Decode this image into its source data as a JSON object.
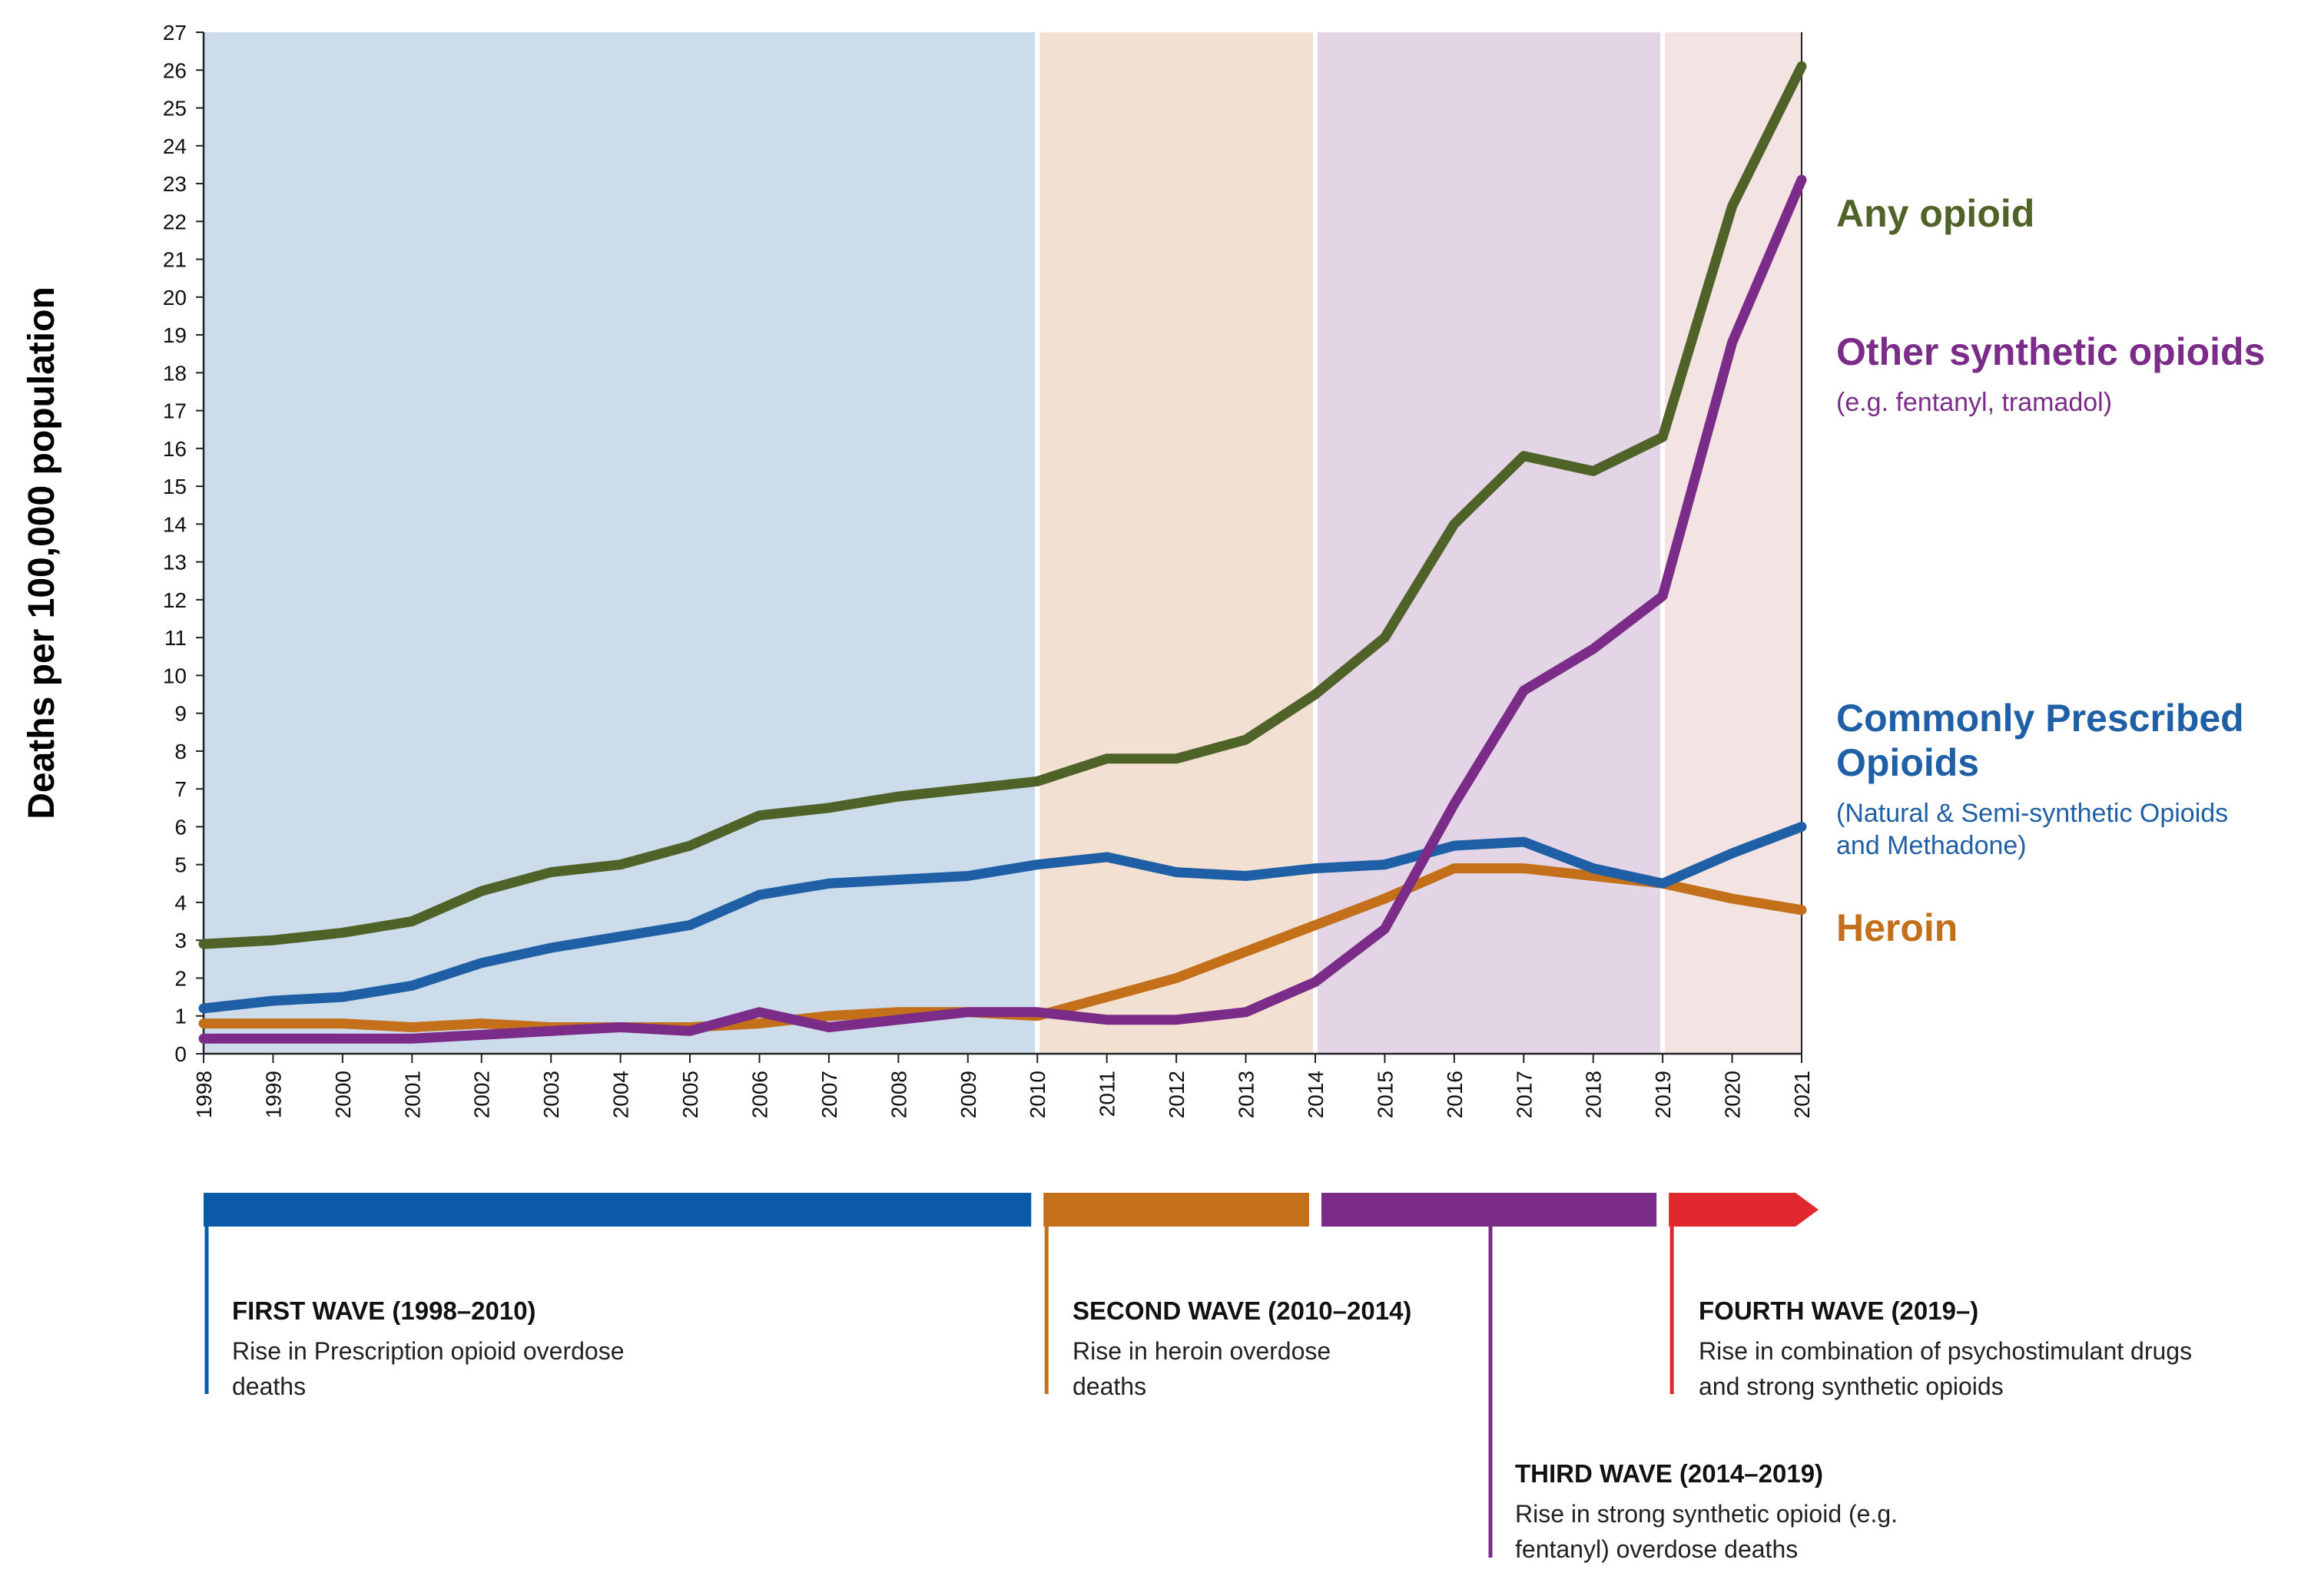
{
  "chart_data": {
    "type": "line",
    "title": "",
    "ylabel": "Deaths per 100,000 population",
    "xlabel": "",
    "ylim": [
      0,
      27
    ],
    "grid": false,
    "x": [
      1998,
      1999,
      2000,
      2001,
      2002,
      2003,
      2004,
      2005,
      2006,
      2007,
      2008,
      2009,
      2010,
      2011,
      2012,
      2013,
      2014,
      2015,
      2016,
      2017,
      2018,
      2019,
      2020,
      2021
    ],
    "yticks": [
      0,
      1,
      2,
      3,
      4,
      5,
      6,
      7,
      8,
      9,
      10,
      11,
      12,
      13,
      14,
      15,
      16,
      17,
      18,
      19,
      20,
      21,
      22,
      23,
      24,
      25,
      26,
      27
    ],
    "series": [
      {
        "name": "Any opioid",
        "color": "#4f6228",
        "values": [
          2.9,
          3.0,
          3.2,
          3.5,
          4.3,
          4.8,
          5.0,
          5.5,
          6.3,
          6.5,
          6.8,
          7.0,
          7.2,
          7.8,
          7.8,
          8.3,
          9.5,
          11.0,
          14.0,
          15.8,
          15.4,
          16.3,
          22.4,
          26.1
        ],
        "label": "Any opioid",
        "sublabel": ""
      },
      {
        "name": "Other synthetic opioids",
        "color": "#7b2b88",
        "values": [
          0.4,
          0.4,
          0.4,
          0.4,
          0.5,
          0.6,
          0.7,
          0.6,
          1.1,
          0.7,
          0.9,
          1.1,
          1.1,
          0.9,
          0.9,
          1.1,
          1.9,
          3.3,
          6.6,
          9.6,
          10.7,
          12.1,
          18.8,
          23.1
        ],
        "label": "Other synthetic opioids",
        "sublabel": "(e.g. fentanyl, tramadol)"
      },
      {
        "name": "Commonly Prescribed Opioids",
        "color": "#1f5fa6",
        "values": [
          1.2,
          1.4,
          1.5,
          1.8,
          2.4,
          2.8,
          3.1,
          3.4,
          4.2,
          4.5,
          4.6,
          4.7,
          5.0,
          5.2,
          4.8,
          4.7,
          4.9,
          5.0,
          5.5,
          5.6,
          4.9,
          4.5,
          5.3,
          6.0
        ],
        "label": "Commonly Prescribed Opioids",
        "sublabel": "(Natural & Semi-synthetic Opioids and Methadone)"
      },
      {
        "name": "Heroin",
        "color": "#c46f1a",
        "values": [
          0.8,
          0.8,
          0.8,
          0.7,
          0.8,
          0.7,
          0.7,
          0.7,
          0.8,
          1.0,
          1.1,
          1.1,
          1.0,
          1.5,
          2.0,
          2.7,
          3.4,
          4.1,
          4.9,
          4.9,
          4.7,
          4.5,
          4.1,
          3.8
        ],
        "label": "Heroin",
        "sublabel": ""
      }
    ],
    "waves": [
      {
        "name": "First wave",
        "start": 1998,
        "end": 2010,
        "title": "FIRST WAVE (1998–2010)",
        "description": "Rise in Prescription opioid overdose deaths",
        "band_color": "#ccdcea",
        "bar_color": "#0b5aa8"
      },
      {
        "name": "Second wave",
        "start": 2010,
        "end": 2014,
        "title": "SECOND WAVE (2010–2014)",
        "description": "Rise in heroin overdose deaths",
        "band_color": "#f2e0d2",
        "bar_color": "#c46f1a"
      },
      {
        "name": "Third wave",
        "start": 2014,
        "end": 2019,
        "title": "THIRD WAVE (2014–2019)",
        "description": "Rise in strong synthetic opioid (e.g. fentanyl) overdose deaths",
        "band_color": "#e4d5e6",
        "bar_color": "#7b2b88"
      },
      {
        "name": "Fourth wave",
        "start": 2019,
        "end": 2021,
        "title": "FOURTH WAVE (2019–)",
        "description": "Rise in combination of psychostimulant drugs and strong synthetic opioids",
        "band_color": "#f3e3e3",
        "bar_color": "#e0282e"
      }
    ]
  }
}
